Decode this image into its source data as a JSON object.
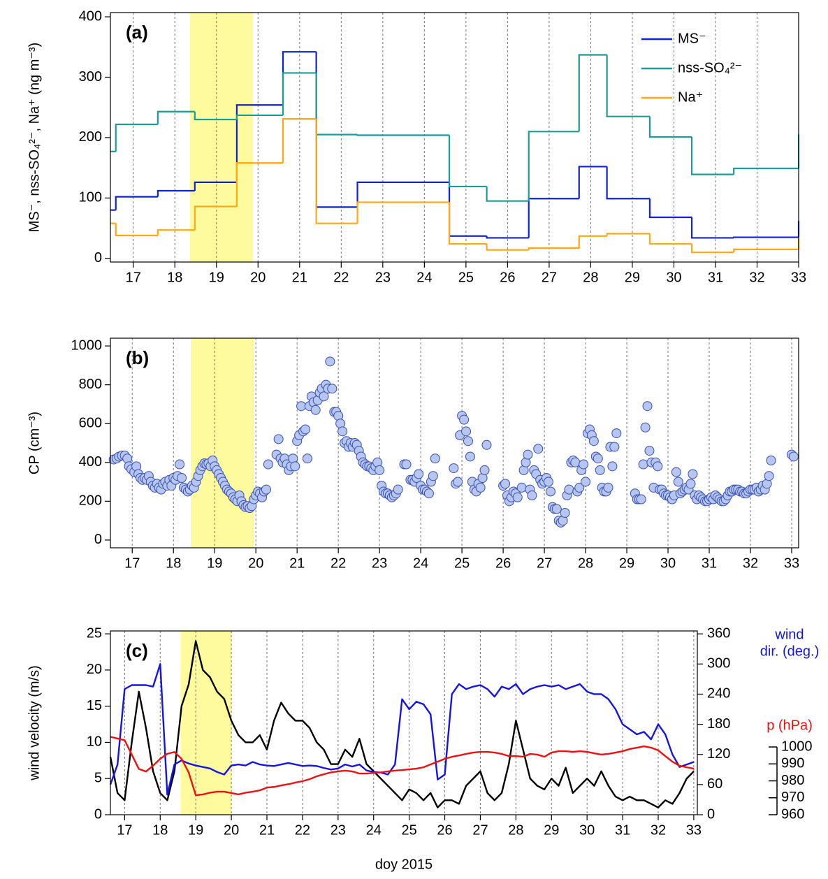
{
  "chart_data": [
    {
      "type": "step",
      "panel_label": "(a)",
      "y_label": "MS⁻, nss-SO₄²⁻, Na⁺ (ng m⁻³)",
      "xlim": [
        16.45,
        33
      ],
      "ylim": [
        -6,
        407
      ],
      "xticks": [
        17,
        18,
        19,
        20,
        21,
        22,
        23,
        24,
        25,
        26,
        27,
        28,
        29,
        30,
        31,
        32,
        33
      ],
      "yticks": [
        0,
        100,
        200,
        300,
        400
      ],
      "grid": true,
      "legend": "upper right",
      "highlight": [
        18.36,
        19.88
      ],
      "highlight_color": "#fdfb9e",
      "x": [
        16.45,
        16.58,
        17.59,
        18.48,
        19.49,
        20.6,
        21.4,
        22.39,
        24.6,
        25.5,
        26.51,
        27.72,
        28.39,
        29.42,
        30.43,
        31.44,
        33
      ],
      "series": [
        {
          "name": "MS⁻",
          "color": "#0f22d8",
          "values": [
            80,
            102,
            112,
            126,
            254,
            342,
            85,
            126,
            37,
            34,
            99,
            152,
            99,
            68,
            34,
            35,
            62
          ]
        },
        {
          "name": "nss-SO₄²⁻",
          "color": "#1b9c96",
          "values": [
            177,
            222,
            243,
            230,
            237,
            307,
            205,
            204,
            119,
            95,
            210,
            337,
            235,
            201,
            139,
            149,
            205
          ]
        },
        {
          "name": "Na⁺",
          "color": "#ffa812",
          "values": [
            58,
            38,
            47,
            86,
            158,
            231,
            58,
            93,
            24,
            14,
            17,
            37,
            41,
            24,
            10,
            15,
            33
          ]
        }
      ]
    },
    {
      "type": "scatter",
      "panel_label": "(b)",
      "y_label": "CP (cm⁻³)",
      "xlim": [
        16.47,
        33.17
      ],
      "ylim": [
        -40,
        1040
      ],
      "xticks": [
        17,
        18,
        19,
        20,
        21,
        22,
        23,
        24,
        25,
        26,
        27,
        28,
        29,
        30,
        31,
        32,
        33
      ],
      "yticks": [
        0,
        200,
        400,
        600,
        800,
        1000
      ],
      "grid": true,
      "highlight": [
        18.42,
        19.95
      ],
      "highlight_color": "#fdfb9e",
      "color": "#b6c6f0",
      "edge_color": "#3a4fb0",
      "x": [
        16.55,
        16.62,
        16.68,
        16.75,
        16.82,
        16.88,
        16.92,
        16.98,
        17.05,
        17.1,
        17.15,
        17.2,
        17.25,
        17.3,
        17.35,
        17.4,
        17.45,
        17.5,
        17.55,
        17.6,
        17.65,
        17.7,
        17.75,
        17.8,
        17.85,
        17.9,
        17.95,
        18.0,
        18.05,
        18.1,
        18.15,
        18.2,
        18.25,
        18.3,
        18.35,
        18.4,
        18.45,
        18.5,
        18.55,
        18.6,
        18.65,
        18.7,
        18.75,
        18.8,
        18.85,
        18.9,
        18.95,
        19.0,
        19.05,
        19.1,
        19.15,
        19.2,
        19.25,
        19.3,
        19.35,
        19.4,
        19.45,
        19.5,
        19.55,
        19.6,
        19.65,
        19.7,
        19.75,
        19.8,
        19.85,
        19.9,
        19.95,
        20.0,
        20.05,
        20.1,
        20.15,
        20.2,
        20.25,
        20.3,
        20.5,
        20.55,
        20.6,
        20.65,
        20.7,
        20.75,
        20.8,
        20.85,
        20.9,
        20.95,
        21.0,
        21.05,
        21.1,
        21.15,
        21.2,
        21.25,
        21.3,
        21.35,
        21.4,
        21.45,
        21.5,
        21.55,
        21.6,
        21.65,
        21.7,
        21.75,
        21.8,
        21.85,
        21.9,
        21.95,
        22.0,
        22.05,
        22.1,
        22.15,
        22.2,
        22.25,
        22.3,
        22.35,
        22.4,
        22.45,
        22.5,
        22.55,
        22.6,
        22.65,
        22.7,
        22.75,
        22.8,
        22.85,
        22.9,
        22.95,
        23.0,
        23.05,
        23.1,
        23.15,
        23.2,
        23.25,
        23.3,
        23.35,
        23.4,
        23.45,
        23.6,
        23.65,
        23.75,
        23.8,
        23.85,
        23.9,
        23.95,
        24.0,
        24.05,
        24.1,
        24.15,
        24.2,
        24.25,
        24.3,
        24.35,
        24.8,
        24.85,
        24.9,
        24.95,
        25.0,
        25.05,
        25.1,
        25.15,
        25.2,
        25.25,
        25.3,
        25.35,
        25.4,
        25.45,
        25.5,
        25.55,
        25.6,
        26.0,
        26.05,
        26.1,
        26.15,
        26.2,
        26.25,
        26.3,
        26.35,
        26.45,
        26.5,
        26.55,
        26.6,
        26.65,
        26.7,
        26.75,
        26.8,
        26.85,
        26.9,
        26.95,
        27.0,
        27.05,
        27.1,
        27.15,
        27.2,
        27.25,
        27.3,
        27.35,
        27.4,
        27.45,
        27.5,
        27.55,
        27.6,
        27.65,
        27.7,
        27.75,
        27.8,
        27.85,
        27.9,
        27.95,
        28.0,
        28.05,
        28.1,
        28.15,
        28.2,
        28.25,
        28.3,
        28.35,
        28.4,
        28.45,
        28.5,
        28.55,
        28.6,
        28.65,
        28.7,
        28.75,
        29.2,
        29.25,
        29.3,
        29.35,
        29.4,
        29.45,
        29.5,
        29.55,
        29.6,
        29.65,
        29.7,
        29.75,
        29.8,
        29.85,
        29.9,
        29.95,
        30.0,
        30.05,
        30.1,
        30.15,
        30.2,
        30.25,
        30.3,
        30.35,
        30.4,
        30.45,
        30.5,
        30.55,
        30.6,
        30.65,
        30.7,
        30.75,
        30.8,
        30.85,
        30.9,
        30.95,
        31.0,
        31.05,
        31.1,
        31.15,
        31.2,
        31.25,
        31.3,
        31.35,
        31.4,
        31.45,
        31.5,
        31.55,
        31.6,
        31.65,
        31.7,
        31.75,
        31.8,
        31.85,
        31.9,
        31.95,
        32.0,
        32.05,
        32.1,
        32.15,
        32.2,
        32.25,
        32.3,
        32.35,
        32.4,
        32.45,
        32.5,
        33.0,
        33.05
      ],
      "values": [
        415,
        420,
        430,
        435,
        435,
        420,
        380,
        365,
        350,
        380,
        340,
        320,
        310,
        320,
        310,
        330,
        300,
        280,
        270,
        290,
        270,
        260,
        290,
        300,
        280,
        310,
        280,
        320,
        310,
        330,
        390,
        320,
        270,
        260,
        250,
        260,
        280,
        270,
        300,
        330,
        360,
        380,
        395,
        390,
        395,
        380,
        410,
        380,
        360,
        340,
        320,
        300,
        280,
        260,
        250,
        240,
        220,
        210,
        200,
        230,
        200,
        180,
        170,
        175,
        165,
        175,
        210,
        230,
        250,
        240,
        220,
        250,
        260,
        390,
        440,
        520,
        420,
        400,
        420,
        390,
        360,
        380,
        420,
        380,
        510,
        540,
        690,
        560,
        570,
        420,
        690,
        740,
        710,
        670,
        720,
        760,
        780,
        740,
        800,
        780,
        920,
        780,
        660,
        660,
        640,
        600,
        560,
        500,
        510,
        480,
        500,
        480,
        500,
        490,
        460,
        430,
        400,
        390,
        380,
        380,
        370,
        360,
        380,
        400,
        360,
        280,
        250,
        240,
        240,
        230,
        220,
        230,
        240,
        260,
        390,
        390,
        310,
        310,
        300,
        320,
        340,
        280,
        260,
        260,
        250,
        240,
        300,
        330,
        420,
        370,
        290,
        300,
        540,
        640,
        620,
        560,
        510,
        430,
        300,
        260,
        250,
        290,
        270,
        320,
        360,
        490,
        280,
        290,
        230,
        200,
        220,
        250,
        240,
        220,
        270,
        360,
        400,
        440,
        260,
        230,
        360,
        340,
        470,
        310,
        290,
        300,
        320,
        300,
        250,
        170,
        160,
        160,
        100,
        90,
        100,
        140,
        230,
        260,
        400,
        410,
        400,
        250,
        270,
        360,
        390,
        300,
        550,
        570,
        540,
        510,
        430,
        420,
        360,
        270,
        250,
        250,
        270,
        480,
        380,
        480,
        550,
        240,
        210,
        210,
        210,
        390,
        580,
        690,
        460,
        400,
        270,
        400,
        380,
        260,
        260,
        240,
        230,
        230,
        220,
        210,
        230,
        350,
        300,
        240,
        250,
        260,
        270,
        260,
        290,
        340,
        230,
        210,
        230,
        220,
        210,
        200,
        200,
        210,
        220,
        210,
        230,
        220,
        210,
        200,
        200,
        210,
        230,
        250,
        250,
        260,
        260,
        260,
        250,
        250,
        240,
        240,
        250,
        260,
        260,
        260,
        270,
        250,
        260,
        280,
        260,
        290,
        330,
        410,
        440,
        430
      ]
    },
    {
      "type": "line",
      "panel_label": "(c)",
      "y_label": "wind velocity (m/s)",
      "xlabel": "doy 2015",
      "y2_label_lines": [
        "wind",
        "dir. (deg.)"
      ],
      "y2_color": "#1414e6",
      "y3_label": "p (hPa)",
      "y3_color": "#ee1111",
      "xlim": [
        16.6,
        33.1
      ],
      "ylim": [
        0,
        25.4
      ],
      "y2lim": [
        0,
        365.8
      ],
      "y3lim": [
        960,
        1068.5
      ],
      "xticks": [
        17,
        18,
        19,
        20,
        21,
        22,
        23,
        24,
        25,
        26,
        27,
        28,
        29,
        30,
        31,
        32,
        33
      ],
      "yticks": [
        0,
        5,
        10,
        15,
        20,
        25
      ],
      "y2ticks": [
        0,
        60,
        120,
        180,
        240,
        300,
        360
      ],
      "y3ticks": [
        960,
        970,
        980,
        990,
        1000
      ],
      "grid": true,
      "highlight": [
        18.57,
        20.0
      ],
      "highlight_color": "#fdfb9e",
      "x": [
        16.6,
        16.8,
        17,
        17.2,
        17.4,
        17.6,
        17.8,
        18,
        18.2,
        18.4,
        18.6,
        18.8,
        19,
        19.2,
        19.4,
        19.6,
        19.8,
        20,
        20.2,
        20.4,
        20.6,
        20.8,
        21,
        21.2,
        21.4,
        21.6,
        21.8,
        22,
        22.2,
        22.4,
        22.6,
        22.8,
        23,
        23.2,
        23.4,
        23.6,
        23.8,
        24,
        24.2,
        24.4,
        24.6,
        24.8,
        25,
        25.2,
        25.4,
        25.6,
        25.8,
        26,
        26.2,
        26.4,
        26.6,
        26.8,
        27,
        27.2,
        27.4,
        27.6,
        27.8,
        28,
        28.2,
        28.4,
        28.6,
        28.8,
        29,
        29.2,
        29.4,
        29.6,
        29.8,
        30,
        30.2,
        30.4,
        30.6,
        30.8,
        31,
        31.2,
        31.4,
        31.6,
        31.8,
        32,
        32.2,
        32.4,
        32.6,
        32.8,
        33
      ],
      "series": [
        {
          "color": "#000000",
          "axis": "y",
          "values": [
            8,
            3,
            2,
            10,
            17,
            12,
            6,
            3,
            2,
            6,
            15,
            18,
            24,
            20,
            19,
            17,
            16,
            13,
            11,
            10,
            10,
            11,
            9,
            13,
            15.5,
            14,
            13,
            13,
            12,
            10,
            9,
            7,
            7,
            9,
            8,
            10.5,
            7,
            6,
            5,
            4,
            3,
            2,
            3.5,
            3,
            2,
            3,
            1,
            2,
            2,
            1.5,
            4,
            5,
            6,
            3,
            2,
            3,
            7,
            13,
            9,
            5,
            4,
            3.5,
            5,
            4,
            6.5,
            3,
            4,
            5,
            4,
            6,
            4,
            2.5,
            2,
            2.5,
            2,
            2,
            1.5,
            1,
            2,
            1.5,
            3,
            5,
            6
          ]
        },
        {
          "color": "#1414e6",
          "axis": "y2",
          "values": [
            60,
            100,
            250,
            258,
            258,
            258,
            255,
            300,
            40,
            100,
            108,
            102,
            98,
            95,
            92,
            85,
            80,
            98,
            100,
            98,
            105,
            100,
            98,
            97,
            100,
            103,
            100,
            97,
            98,
            97,
            93,
            90,
            92,
            100,
            96,
            100,
            88,
            85,
            84,
            80,
            100,
            230,
            210,
            225,
            220,
            200,
            70,
            80,
            240,
            260,
            250,
            255,
            258,
            250,
            235,
            255,
            250,
            260,
            240,
            250,
            255,
            258,
            255,
            258,
            250,
            255,
            260,
            245,
            240,
            240,
            230,
            210,
            180,
            170,
            160,
            165,
            150,
            180,
            160,
            120,
            95,
            100,
            105
          ]
        },
        {
          "color": "#ee1111",
          "axis": "y3",
          "values": [
            1006,
            1005,
            1004,
            995.5,
            987,
            985.5,
            989,
            993,
            996,
            997,
            993,
            985,
            971.5,
            972,
            973,
            973.6,
            973.6,
            972.8,
            972,
            973,
            973.6,
            974.4,
            976,
            976.4,
            977.3,
            978,
            979,
            979.8,
            981,
            982.7,
            983.9,
            985,
            985.6,
            986,
            985.6,
            984.3,
            984.3,
            984.7,
            985,
            985.6,
            986,
            986.4,
            986.8,
            987.2,
            988,
            989.7,
            991.3,
            993,
            994.2,
            995,
            995.9,
            996.7,
            997.1,
            997.1,
            996.7,
            995.9,
            994.6,
            994.6,
            994.2,
            995.9,
            995.5,
            994.2,
            996.7,
            997.5,
            997.5,
            997.1,
            997.5,
            997.1,
            996.3,
            995.5,
            995.9,
            996.7,
            997.5,
            998.8,
            999.6,
            1000.4,
            999.6,
            998,
            994.6,
            991.3,
            988.9,
            988,
            987.2
          ]
        }
      ]
    }
  ]
}
